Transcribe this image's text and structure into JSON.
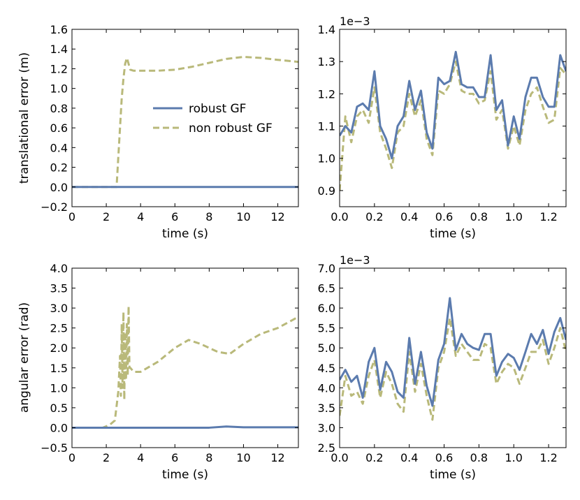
{
  "colors": {
    "robust": "#5b7bae",
    "nonrobust": "#b9b97a"
  },
  "legend": {
    "robust_label": "robust GF",
    "nonrobust_label": "non robust GF"
  },
  "chart_data": [
    {
      "type": "line",
      "id": "translational",
      "xlabel": "time (s)",
      "ylabel": "translational error (m)",
      "offset_text": "",
      "xlim": [
        0,
        13.2
      ],
      "ylim": [
        -0.2,
        1.6
      ],
      "xticks": [
        0,
        2,
        4,
        6,
        8,
        10,
        12
      ],
      "yticks": [
        -0.2,
        0.0,
        0.2,
        0.4,
        0.6,
        0.8,
        1.0,
        1.2,
        1.4,
        1.6
      ],
      "xtick_decimals": 0,
      "ytick_decimals": 1,
      "series": [
        {
          "name": "robust GF",
          "style": "solid",
          "x": [
            0,
            2,
            4,
            6,
            8,
            10,
            12,
            13.2
          ],
          "y": [
            0.0,
            0.0,
            0.0,
            0.0,
            0.0,
            0.0,
            0.0,
            0.0
          ]
        },
        {
          "name": "non robust GF",
          "style": "dashed",
          "x": [
            0,
            1,
            2,
            2.5,
            2.6,
            2.7,
            2.8,
            2.9,
            3.0,
            3.1,
            3.2,
            3.3,
            3.4,
            3.6,
            4,
            5,
            6,
            7,
            8,
            9,
            10,
            11,
            12,
            13.2
          ],
          "y": [
            0.0,
            0.0,
            0.0,
            0.0,
            0.0,
            0.3,
            0.6,
            0.9,
            1.1,
            1.25,
            1.31,
            1.25,
            1.19,
            1.18,
            1.18,
            1.18,
            1.19,
            1.22,
            1.26,
            1.3,
            1.32,
            1.31,
            1.29,
            1.27
          ]
        }
      ]
    },
    {
      "type": "line",
      "id": "translational-zoom",
      "xlabel": "time (s)",
      "ylabel": "",
      "offset_text": "1e−3",
      "xlim": [
        0,
        1.3
      ],
      "ylim": [
        0.85,
        1.4
      ],
      "xticks": [
        0.0,
        0.2,
        0.4,
        0.6,
        0.8,
        1.0,
        1.2
      ],
      "yticks": [
        0.9,
        1.0,
        1.1,
        1.2,
        1.3,
        1.4
      ],
      "xtick_decimals": 1,
      "ytick_decimals": 1,
      "series": [
        {
          "name": "robust GF",
          "style": "solid",
          "x": [
            0,
            0.033,
            0.067,
            0.1,
            0.133,
            0.167,
            0.2,
            0.233,
            0.267,
            0.3,
            0.333,
            0.367,
            0.4,
            0.433,
            0.467,
            0.5,
            0.533,
            0.567,
            0.6,
            0.633,
            0.667,
            0.7,
            0.733,
            0.767,
            0.8,
            0.833,
            0.867,
            0.9,
            0.933,
            0.967,
            1.0,
            1.033,
            1.067,
            1.1,
            1.133,
            1.167,
            1.2,
            1.233,
            1.267,
            1.3
          ],
          "y": [
            1.07,
            1.1,
            1.08,
            1.16,
            1.17,
            1.15,
            1.27,
            1.1,
            1.06,
            1.0,
            1.1,
            1.13,
            1.24,
            1.15,
            1.21,
            1.08,
            1.03,
            1.25,
            1.23,
            1.24,
            1.33,
            1.23,
            1.22,
            1.22,
            1.19,
            1.19,
            1.32,
            1.15,
            1.18,
            1.04,
            1.13,
            1.06,
            1.19,
            1.25,
            1.25,
            1.19,
            1.16,
            1.16,
            1.32,
            1.27
          ]
        },
        {
          "name": "non robust GF",
          "style": "dashed",
          "x": [
            0,
            0.033,
            0.067,
            0.1,
            0.133,
            0.167,
            0.2,
            0.233,
            0.267,
            0.3,
            0.333,
            0.367,
            0.4,
            0.433,
            0.467,
            0.5,
            0.533,
            0.567,
            0.6,
            0.633,
            0.667,
            0.7,
            0.733,
            0.767,
            0.8,
            0.833,
            0.867,
            0.9,
            0.933,
            0.967,
            1.0,
            1.033,
            1.067,
            1.1,
            1.133,
            1.167,
            1.2,
            1.233,
            1.267,
            1.3
          ],
          "y": [
            0.9,
            1.13,
            1.05,
            1.13,
            1.15,
            1.11,
            1.22,
            1.08,
            1.03,
            0.97,
            1.08,
            1.1,
            1.2,
            1.13,
            1.18,
            1.06,
            1.01,
            1.21,
            1.2,
            1.23,
            1.3,
            1.21,
            1.2,
            1.2,
            1.17,
            1.18,
            1.27,
            1.12,
            1.15,
            1.03,
            1.1,
            1.04,
            1.15,
            1.2,
            1.22,
            1.16,
            1.11,
            1.12,
            1.28,
            1.26
          ]
        }
      ]
    },
    {
      "type": "line",
      "id": "angular",
      "xlabel": "time (s)",
      "ylabel": "angular error (rad)",
      "offset_text": "",
      "xlim": [
        0,
        13.2
      ],
      "ylim": [
        -0.5,
        4.0
      ],
      "xticks": [
        0,
        2,
        4,
        6,
        8,
        10,
        12
      ],
      "yticks": [
        -0.5,
        0.0,
        0.5,
        1.0,
        1.5,
        2.0,
        2.5,
        3.0,
        3.5,
        4.0
      ],
      "xtick_decimals": 0,
      "ytick_decimals": 1,
      "series": [
        {
          "name": "robust GF",
          "style": "solid",
          "x": [
            0,
            2,
            4,
            6,
            8,
            9,
            10,
            12,
            13.2
          ],
          "y": [
            0.0,
            0.0,
            0.0,
            0.0,
            0.0,
            0.03,
            0.01,
            0.01,
            0.01
          ]
        },
        {
          "name": "non robust GF",
          "style": "dashed",
          "x": [
            0,
            1,
            1.8,
            2.2,
            2.5,
            2.7,
            2.8,
            2.85,
            2.9,
            2.95,
            3.0,
            3.05,
            3.1,
            3.15,
            3.2,
            3.25,
            3.3,
            3.35,
            3.4,
            3.6,
            4,
            5,
            6,
            6.8,
            7.5,
            8.5,
            9.2,
            10,
            11,
            12,
            13.2
          ],
          "y": [
            0.0,
            0.0,
            0.0,
            0.07,
            0.18,
            0.9,
            1.8,
            0.8,
            2.6,
            1.0,
            2.9,
            0.7,
            2.4,
            1.2,
            2.6,
            1.3,
            3.05,
            1.5,
            1.5,
            1.4,
            1.4,
            1.65,
            2.0,
            2.2,
            2.1,
            1.9,
            1.85,
            2.1,
            2.35,
            2.5,
            2.78
          ]
        }
      ]
    },
    {
      "type": "line",
      "id": "angular-zoom",
      "xlabel": "time (s)",
      "ylabel": "",
      "offset_text": "1e−3",
      "xlim": [
        0,
        1.3
      ],
      "ylim": [
        2.5,
        7.0
      ],
      "xticks": [
        0.0,
        0.2,
        0.4,
        0.6,
        0.8,
        1.0,
        1.2
      ],
      "yticks": [
        2.5,
        3.0,
        3.5,
        4.0,
        4.5,
        5.0,
        5.5,
        6.0,
        6.5,
        7.0
      ],
      "xtick_decimals": 1,
      "ytick_decimals": 1,
      "series": [
        {
          "name": "robust GF",
          "style": "solid",
          "x": [
            0,
            0.033,
            0.067,
            0.1,
            0.133,
            0.167,
            0.2,
            0.233,
            0.267,
            0.3,
            0.333,
            0.367,
            0.4,
            0.433,
            0.467,
            0.5,
            0.533,
            0.567,
            0.6,
            0.633,
            0.667,
            0.7,
            0.733,
            0.767,
            0.8,
            0.833,
            0.867,
            0.9,
            0.933,
            0.967,
            1.0,
            1.033,
            1.067,
            1.1,
            1.133,
            1.167,
            1.2,
            1.233,
            1.267,
            1.3
          ],
          "y": [
            4.2,
            4.45,
            4.15,
            4.3,
            3.75,
            4.65,
            5.0,
            3.95,
            4.65,
            4.4,
            3.9,
            3.75,
            5.25,
            4.1,
            4.9,
            4.05,
            3.55,
            4.7,
            5.1,
            6.25,
            4.95,
            5.35,
            5.1,
            5.0,
            4.95,
            5.35,
            5.35,
            4.3,
            4.65,
            4.85,
            4.75,
            4.45,
            4.9,
            5.35,
            5.1,
            5.45,
            4.85,
            5.4,
            5.75,
            5.2
          ]
        },
        {
          "name": "non robust GF",
          "style": "dashed",
          "x": [
            0,
            0.033,
            0.067,
            0.1,
            0.133,
            0.167,
            0.2,
            0.233,
            0.267,
            0.3,
            0.333,
            0.367,
            0.4,
            0.433,
            0.467,
            0.5,
            0.533,
            0.567,
            0.6,
            0.633,
            0.667,
            0.7,
            0.733,
            0.767,
            0.8,
            0.833,
            0.867,
            0.9,
            0.933,
            0.967,
            1.0,
            1.033,
            1.067,
            1.1,
            1.133,
            1.167,
            1.2,
            1.233,
            1.267,
            1.3
          ],
          "y": [
            3.3,
            4.3,
            3.8,
            3.9,
            3.6,
            4.3,
            4.7,
            3.75,
            4.4,
            4.1,
            3.6,
            3.4,
            4.9,
            3.9,
            4.6,
            3.8,
            3.2,
            4.5,
            4.9,
            5.75,
            4.8,
            5.1,
            4.9,
            4.7,
            4.7,
            5.1,
            5.0,
            4.1,
            4.4,
            4.6,
            4.5,
            4.1,
            4.5,
            4.9,
            4.9,
            5.2,
            4.6,
            5.0,
            5.5,
            4.9
          ]
        }
      ]
    }
  ]
}
